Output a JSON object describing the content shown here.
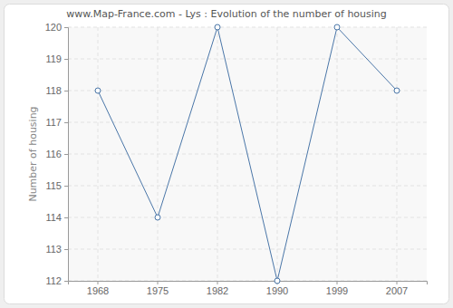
{
  "chart_data": {
    "type": "line",
    "title": "www.Map-France.com - Lys : Evolution of the number of housing",
    "y_label": "Number of housing",
    "categories": [
      "1968",
      "1975",
      "1982",
      "1990",
      "1999",
      "2007"
    ],
    "values": [
      118,
      114,
      120,
      112,
      120,
      118
    ],
    "color": "#4a76a8",
    "marker": "circle",
    "ylim": [
      112,
      120
    ],
    "yticks": [
      112,
      113,
      114,
      115,
      116,
      117,
      118,
      119,
      120
    ],
    "grid": true
  }
}
